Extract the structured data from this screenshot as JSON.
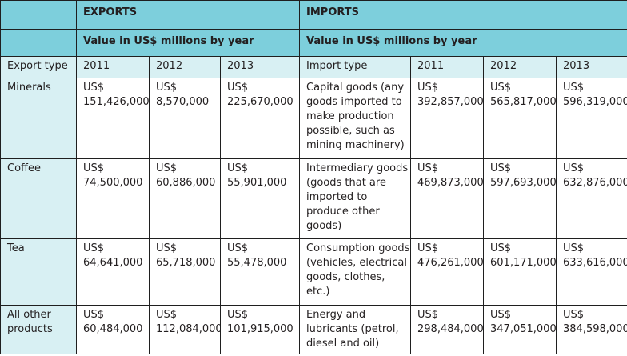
{
  "exports_heading": "EXPORTS",
  "imports_heading": "IMPORTS",
  "exports_subheading": "Value in US$ millions by year",
  "imports_subheading": "Value in US$ millions by year",
  "export_type_label": "Export type",
  "import_type_label": "Import type",
  "years": [
    "2011",
    "2012",
    "2013"
  ],
  "rows": [
    {
      "export": "Minerals",
      "export_values": [
        "US$ 151,426,000",
        "US$ 8,570,000",
        "US$ 225,670,000"
      ],
      "import": "Capital goods (any goods imported to make production possible, such as mining machinery)",
      "import_values": [
        "US$ 392,857,000",
        "US$ 565,817,000",
        "US$ 596,319,000"
      ]
    },
    {
      "export": "Coffee",
      "export_values": [
        "US$ 74,500,000",
        "US$ 60,886,000",
        "US$ 55,901,000"
      ],
      "import": "Intermediary goods (goods that are imported to produce other goods)",
      "import_values": [
        "US$ 469,873,000",
        "US$ 597,693,000",
        "US$ 632,876,000"
      ]
    },
    {
      "export": "Tea",
      "export_values": [
        "US$ 64,641,000",
        "US$ 65,718,000",
        "US$ 55,478,000"
      ],
      "import": "Consumption goods (vehicles, electrical goods, clothes, etc.)",
      "import_values": [
        "US$ 476,261,000",
        "US$ 601,171,000",
        "US$ 633,616,000"
      ]
    },
    {
      "export": "All other products",
      "export_values": [
        "US$ 60,484,000",
        "US$ 112,084,000",
        "US$ 101,915,000"
      ],
      "import": "Energy and lubricants (petrol, diesel and oil)",
      "import_values": [
        "US$ 298,484,000",
        "US$ 347,051,000",
        "US$ 384,598,000"
      ]
    }
  ]
}
